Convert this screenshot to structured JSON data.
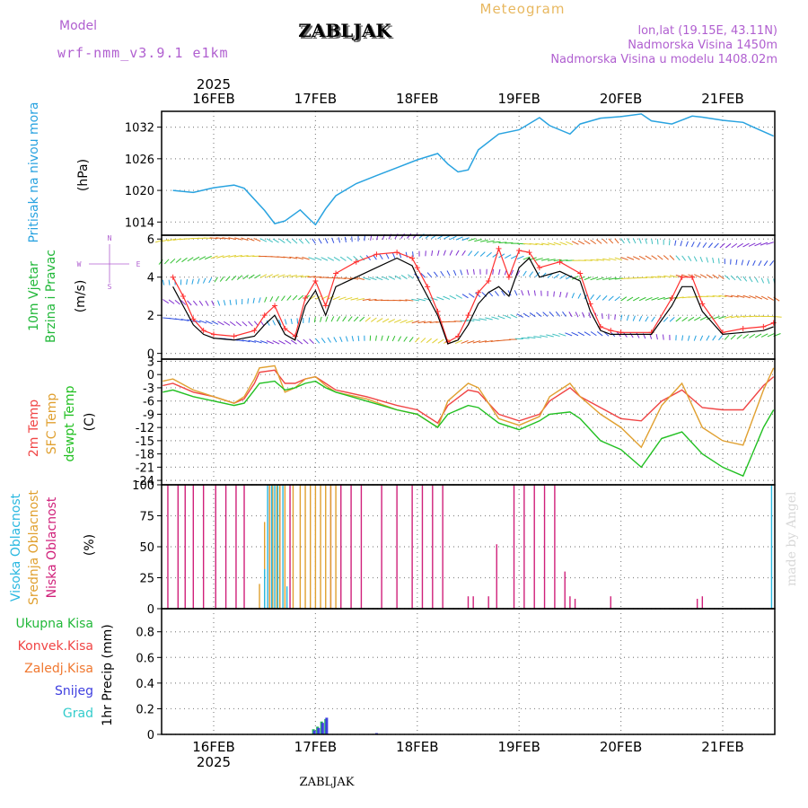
{
  "header": {
    "model_label": "Model",
    "model_name": "wrf-nmm_v3.9.1 e1km",
    "station": "ZABLJAK",
    "chart_title": "Meteogram",
    "lonlat": "lon,lat (19.15E, 43.11N)",
    "altitude": "Nadmorska Visina 1450m",
    "model_altitude": "Nadmorska Visina u modelu 1408.02m",
    "footer_station": "ZABLJAK",
    "watermark": "made by Angel"
  },
  "time_axis": {
    "year": "2025",
    "date_labels": [
      "16FEB",
      "17FEB",
      "18FEB",
      "19FEB",
      "20FEB",
      "21FEB"
    ]
  },
  "wind_rose": {
    "n": "N",
    "s": "S",
    "e": "E",
    "w": "W"
  },
  "colors": {
    "pressure": "#29a3e0",
    "temp2m": "#f04545",
    "tsfc": "#e0a030",
    "dewpt": "#22c022",
    "high_cloud": "#29b8e0",
    "mid_cloud": "#e0a030",
    "low_cloud": "#d0207a",
    "total_precip": "#22b060",
    "snow": "#4040e0",
    "graupel": "#33cccc",
    "axis": "#000000",
    "grid": "#888888",
    "title": "#e8b860",
    "meta": "#b05fd0"
  },
  "chart_data": [
    {
      "type": "line",
      "id": "pressure",
      "ylabel": [
        "Pritisak na nivou mora",
        "(hPa)"
      ],
      "yticks": [
        1014,
        1020,
        1026,
        1032
      ],
      "ylim": [
        1011.5,
        1035
      ],
      "x_unit": "days since 16FEB 00UTC",
      "series": [
        {
          "x": [
            -0.4,
            -0.2,
            0,
            0.2,
            0.3,
            0.5,
            0.6,
            0.7,
            0.85,
            0.95,
            1.0,
            1.1,
            1.2,
            1.4,
            1.6,
            1.8,
            2.0,
            2.2,
            2.3,
            2.4,
            2.5,
            2.6,
            2.8,
            3.0,
            3.2,
            3.3,
            3.5,
            3.6,
            3.8,
            4.0,
            4.2,
            4.3,
            4.5,
            4.7,
            4.8,
            5.0,
            5.2,
            5.3,
            5.5
          ],
          "y": [
            1020.0,
            1019.6,
            1020.5,
            1021.0,
            1020.4,
            1016.2,
            1013.7,
            1014.2,
            1016.3,
            1014.4,
            1013.5,
            1016.5,
            1019.0,
            1021.3,
            1022.8,
            1024.3,
            1025.8,
            1027.0,
            1025.0,
            1023.5,
            1023.9,
            1027.7,
            1030.7,
            1031.5,
            1033.8,
            1032.3,
            1030.7,
            1032.6,
            1033.7,
            1034.0,
            1034.5,
            1033.2,
            1032.6,
            1034.1,
            1033.9,
            1033.3,
            1032.9,
            1032.0,
            1030.3
          ]
        }
      ]
    },
    {
      "type": "line",
      "id": "wind",
      "ylabel": [
        "10m Vjetar",
        "Brzina i Pravac",
        "(m/s)"
      ],
      "yticks": [
        0,
        2,
        4,
        6
      ],
      "ylim": [
        -0.3,
        6.2
      ],
      "series": [
        {
          "name": "speed",
          "x": [
            -0.4,
            -0.3,
            -0.2,
            -0.1,
            0.0,
            0.2,
            0.4,
            0.5,
            0.6,
            0.7,
            0.8,
            0.9,
            1.0,
            1.1,
            1.2,
            1.4,
            1.6,
            1.8,
            1.95,
            2.0,
            2.1,
            2.2,
            2.3,
            2.4,
            2.5,
            2.6,
            2.7,
            2.8,
            2.9,
            3.0,
            3.1,
            3.2,
            3.4,
            3.6,
            3.7,
            3.8,
            3.9,
            4.0,
            4.3,
            4.5,
            4.6,
            4.7,
            4.8,
            5.0,
            5.2,
            5.4,
            5.5
          ],
          "y": [
            3.5,
            2.5,
            1.5,
            1.0,
            0.8,
            0.7,
            0.9,
            1.5,
            2.0,
            1.0,
            0.7,
            2.5,
            3.3,
            2.0,
            3.5,
            4.0,
            4.5,
            5.0,
            4.6,
            4.0,
            3.0,
            2.0,
            0.5,
            0.7,
            1.5,
            2.6,
            3.2,
            3.5,
            3.0,
            4.5,
            5.0,
            4.0,
            4.3,
            3.8,
            2.2,
            1.2,
            1.0,
            1.0,
            1.0,
            2.5,
            3.5,
            3.5,
            2.2,
            1.0,
            1.1,
            1.2,
            1.4
          ]
        },
        {
          "name": "gust",
          "x": [
            -0.4,
            -0.3,
            -0.2,
            -0.1,
            0.0,
            0.2,
            0.4,
            0.5,
            0.6,
            0.7,
            0.8,
            0.9,
            1.0,
            1.1,
            1.2,
            1.4,
            1.6,
            1.8,
            1.95,
            2.0,
            2.1,
            2.2,
            2.3,
            2.4,
            2.5,
            2.6,
            2.7,
            2.8,
            2.9,
            3.0,
            3.1,
            3.2,
            3.4,
            3.6,
            3.7,
            3.8,
            3.9,
            4.0,
            4.3,
            4.5,
            4.6,
            4.7,
            4.8,
            5.0,
            5.2,
            5.4,
            5.5
          ],
          "y": [
            4.0,
            3.0,
            1.8,
            1.2,
            1.0,
            0.9,
            1.2,
            2.0,
            2.5,
            1.3,
            0.9,
            2.9,
            3.8,
            2.5,
            4.2,
            4.8,
            5.2,
            5.3,
            5.0,
            4.5,
            3.5,
            2.2,
            0.6,
            0.9,
            2.0,
            3.2,
            3.8,
            5.5,
            4.0,
            5.4,
            5.3,
            4.5,
            4.8,
            4.2,
            2.6,
            1.4,
            1.2,
            1.1,
            1.1,
            2.9,
            4.0,
            4.0,
            2.6,
            1.1,
            1.3,
            1.4,
            1.6
          ]
        }
      ],
      "wind_layers": [
        0.8,
        1.8,
        2.9,
        4.0,
        5.0,
        5.9
      ]
    },
    {
      "type": "line",
      "id": "temperature",
      "ylabel": [
        "2m Temp",
        "SFC Temp",
        "dewpt Temp",
        "(C)"
      ],
      "yticks": [
        3,
        0,
        -3,
        -6,
        -9,
        -12,
        -15,
        -18,
        -21,
        -24
      ],
      "ylim": [
        -25,
        3.5
      ],
      "series": [
        {
          "name": "2m Temp",
          "x": [
            -0.5,
            -0.4,
            -0.2,
            0.0,
            0.2,
            0.3,
            0.4,
            0.45,
            0.6,
            0.7,
            0.8,
            0.9,
            1.0,
            1.1,
            1.2,
            1.5,
            1.8,
            2.0,
            2.2,
            2.3,
            2.5,
            2.6,
            2.8,
            3.0,
            3.2,
            3.3,
            3.5,
            3.6,
            3.8,
            4.0,
            4.2,
            4.4,
            4.6,
            4.8,
            5.0,
            5.2,
            5.4,
            5.5
          ],
          "y": [
            -2.5,
            -2.0,
            -4.0,
            -5.0,
            -6.5,
            -5.5,
            -2.0,
            0.5,
            1.0,
            -2.0,
            -2.0,
            -1.0,
            -0.5,
            -2.0,
            -3.5,
            -5.0,
            -7.0,
            -8.0,
            -11.0,
            -7.0,
            -3.5,
            -4.0,
            -9.0,
            -10.5,
            -9.0,
            -6.0,
            -3.0,
            -5.0,
            -7.5,
            -10.0,
            -10.5,
            -6.0,
            -3.5,
            -7.5,
            -8.0,
            -8.0,
            -2.5,
            -0.5
          ]
        },
        {
          "name": "SFC Temp",
          "x": [
            -0.5,
            -0.4,
            -0.2,
            0.0,
            0.2,
            0.3,
            0.4,
            0.45,
            0.6,
            0.7,
            0.8,
            0.9,
            1.0,
            1.1,
            1.2,
            1.5,
            1.8,
            2.0,
            2.2,
            2.3,
            2.5,
            2.6,
            2.8,
            3.0,
            3.2,
            3.3,
            3.5,
            3.6,
            3.8,
            4.0,
            4.2,
            4.4,
            4.6,
            4.8,
            5.0,
            5.2,
            5.4,
            5.5
          ],
          "y": [
            -1.5,
            -1.0,
            -3.5,
            -5.0,
            -6.5,
            -5.0,
            -1.0,
            1.5,
            2.0,
            -4.0,
            -3.0,
            -1.0,
            -0.5,
            -2.5,
            -4.0,
            -5.5,
            -8.0,
            -9.0,
            -12.0,
            -6.0,
            -2.0,
            -3.0,
            -10.0,
            -11.5,
            -9.5,
            -5.0,
            -2.0,
            -5.0,
            -9.0,
            -12.0,
            -16.5,
            -7.0,
            -2.0,
            -12.0,
            -15.0,
            -16.0,
            -3.5,
            1.5
          ]
        },
        {
          "name": "dewpt Temp",
          "x": [
            -0.5,
            -0.4,
            -0.2,
            0.0,
            0.2,
            0.3,
            0.4,
            0.45,
            0.6,
            0.7,
            0.8,
            0.9,
            1.0,
            1.1,
            1.2,
            1.5,
            1.8,
            2.0,
            2.2,
            2.3,
            2.5,
            2.6,
            2.8,
            3.0,
            3.2,
            3.3,
            3.5,
            3.6,
            3.8,
            4.0,
            4.2,
            4.4,
            4.6,
            4.8,
            5.0,
            5.2,
            5.4,
            5.5
          ],
          "y": [
            -4.0,
            -3.5,
            -5.0,
            -6.0,
            -7.0,
            -6.5,
            -3.5,
            -2.0,
            -1.5,
            -3.5,
            -3.0,
            -2.0,
            -1.5,
            -3.0,
            -4.0,
            -6.0,
            -8.0,
            -9.0,
            -12.0,
            -9.0,
            -7.0,
            -7.5,
            -11.0,
            -12.5,
            -10.5,
            -9.0,
            -8.5,
            -10.0,
            -15.0,
            -17.0,
            -21.0,
            -14.5,
            -13.0,
            -18.0,
            -21.0,
            -23.0,
            -12.0,
            -8.0
          ]
        }
      ]
    },
    {
      "type": "bar",
      "id": "cloud",
      "ylabel": [
        "Visoka Oblacnost",
        "Srednja Oblacnost",
        "Niska Oblacnost",
        "(%)"
      ],
      "yticks": [
        0,
        25,
        50,
        75,
        100
      ],
      "ylim": [
        0,
        100
      ],
      "series": [
        {
          "name": "Niska Oblacnost",
          "x": [
            -0.45,
            -0.35,
            -0.28,
            -0.2,
            -0.1,
            0.02,
            0.12,
            0.22,
            0.3,
            0.55,
            0.65,
            0.75,
            1.15,
            1.25,
            1.35,
            1.45,
            1.65,
            1.8,
            1.95,
            2.05,
            2.15,
            2.25,
            2.5,
            2.55,
            2.7,
            2.78,
            2.95,
            3.05,
            3.15,
            3.25,
            3.35,
            3.45,
            3.5,
            3.55,
            3.9,
            4.75,
            4.8
          ],
          "values": [
            100,
            100,
            100,
            100,
            100,
            100,
            100,
            100,
            100,
            100,
            100,
            100,
            100,
            100,
            100,
            100,
            100,
            100,
            100,
            100,
            100,
            100,
            10,
            10,
            10,
            52,
            100,
            100,
            100,
            100,
            100,
            30,
            10,
            8,
            10,
            8,
            10
          ]
        },
        {
          "name": "Srednja Oblacnost",
          "x": [
            0.45,
            0.5,
            0.55,
            0.58,
            0.62,
            0.65,
            0.7,
            0.78,
            0.85,
            0.9,
            0.95,
            1.0,
            1.05,
            1.1,
            1.15,
            1.2
          ],
          "values": [
            20,
            70,
            100,
            100,
            100,
            100,
            100,
            100,
            100,
            100,
            100,
            100,
            100,
            100,
            100,
            100
          ]
        },
        {
          "name": "Visoka Oblacnost",
          "x": [
            0.5,
            0.53,
            0.57,
            0.6,
            0.63,
            0.68,
            0.72,
            5.48
          ],
          "values": [
            32,
            100,
            100,
            100,
            100,
            100,
            18,
            100
          ]
        }
      ]
    },
    {
      "type": "bar",
      "id": "precip",
      "ylabel": [
        "Ukupna Kisa",
        "Konvek.Kisa",
        "Zaledj.Kisa",
        "Snijeg",
        "Grad",
        "1hr Precip (mm)"
      ],
      "yticks": [
        0,
        0.2,
        0.4,
        0.6,
        0.8
      ],
      "ylim": [
        0,
        0.98
      ],
      "series": [
        {
          "name": "Ukupna Kisa",
          "x": [
            0.98,
            1.02,
            1.06,
            1.1
          ],
          "values": [
            0.04,
            0.06,
            0.1,
            0.12
          ]
        },
        {
          "name": "Snijeg",
          "x": [
            0.99,
            1.03,
            1.07,
            1.11,
            1.6
          ],
          "values": [
            0.03,
            0.05,
            0.09,
            0.13,
            0.01
          ]
        }
      ]
    }
  ]
}
